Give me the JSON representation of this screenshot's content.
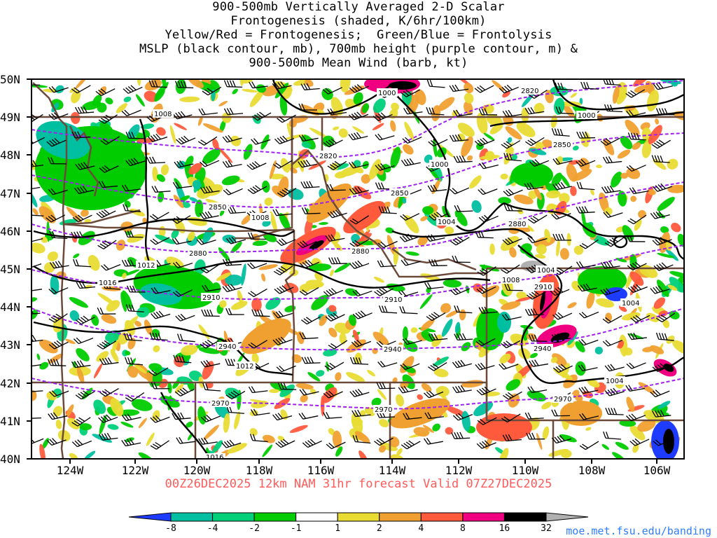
{
  "title": {
    "lines": [
      "900-500mb Vertically Averaged 2-D Scalar",
      "Frontogenesis (shaded, K/6hr/100km)",
      "Yellow/Red = Frontogenesis;  Green/Blue = Frontolysis",
      "MSLP (black contour, mb), 700mb height (purple contour, m) &",
      "900-500mb Mean Wind (barb, kt)"
    ]
  },
  "map": {
    "lat_labels": [
      "50N",
      "49N",
      "48N",
      "47N",
      "46N",
      "45N",
      "44N",
      "43N",
      "42N",
      "41N",
      "40N"
    ],
    "lon_labels": [
      "124W",
      "122W",
      "120W",
      "118W",
      "116W",
      "114W",
      "112W",
      "110W",
      "108W",
      "106W"
    ],
    "height_contour_labels": [
      "2820",
      "2820",
      "2850",
      "2850",
      "2850",
      "2880",
      "2880",
      "2880",
      "2910",
      "2910",
      "2910",
      "2940",
      "2940",
      "2940",
      "2970",
      "2970",
      "2970"
    ],
    "pressure_contour_labels": [
      "1000",
      "1000",
      "1000",
      "1008",
      "1008",
      "1004",
      "1012",
      "1016",
      "1012",
      "1008",
      "1004",
      "1004",
      "1004",
      "1016"
    ],
    "colors": {
      "mslp": "#000000",
      "height": "#a020f0",
      "borders": "#6b4a3a",
      "barbs": "#000000",
      "frontogenesis": [
        "#e8dc33",
        "#f0a030",
        "#ff5a3c",
        "#f00080",
        "#000000",
        "#b0b0b0"
      ],
      "frontolysis": [
        "#00cc00",
        "#00d07a",
        "#00bfa0",
        "#1e3cff"
      ]
    }
  },
  "footer": {
    "valid_line": "00Z26DEC2025 12km NAM 31hr forecast Valid 07Z27DEC2025",
    "credit": "moe.met.fsu.edu/banding"
  },
  "colorbar": {
    "labels": [
      "-8",
      "-4",
      "-2",
      "-1",
      "1",
      "2",
      "4",
      "8",
      "16",
      "32"
    ],
    "colors": [
      "#1e3cff",
      "#00bfa0",
      "#00d07a",
      "#00cc00",
      "#ffffff",
      "#e8dc33",
      "#f0a030",
      "#ff5a3c",
      "#f00080",
      "#000000",
      "#b0b0b0"
    ],
    "units": "K/6hr/100km"
  }
}
